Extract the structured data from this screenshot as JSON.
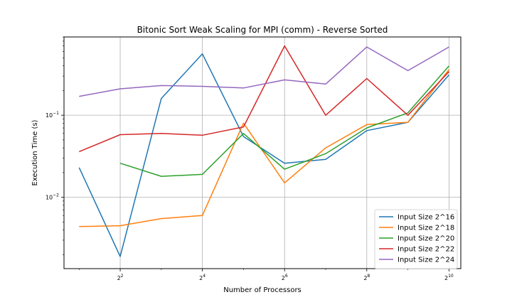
{
  "chart_data": {
    "type": "line",
    "title": "Bitonic Sort Weak Scaling for MPI (comm) - Reverse Sorted",
    "xlabel": "Number of Processors",
    "ylabel": "Execution Time (s)",
    "x_scale": "log2",
    "y_scale": "log10",
    "x": [
      2,
      4,
      8,
      16,
      32,
      64,
      128,
      256,
      512,
      1024
    ],
    "xlim": [
      1.55,
      1250
    ],
    "ylim": [
      0.00135,
      0.9
    ],
    "grid": true,
    "legend_position": "lower-right",
    "x_ticks": [
      {
        "value": 4,
        "base": "2",
        "exp": "2"
      },
      {
        "value": 16,
        "base": "2",
        "exp": "4"
      },
      {
        "value": 64,
        "base": "2",
        "exp": "6"
      },
      {
        "value": 256,
        "base": "2",
        "exp": "8"
      },
      {
        "value": 1024,
        "base": "2",
        "exp": "10"
      }
    ],
    "y_ticks": [
      {
        "value": 0.01,
        "base": "10",
        "exp": "−2"
      },
      {
        "value": 0.1,
        "base": "10",
        "exp": "−1"
      }
    ],
    "series": [
      {
        "name": "Input Size 2^16",
        "color": "#1f77b4",
        "values": [
          0.023,
          0.0019,
          0.16,
          0.56,
          0.055,
          0.026,
          0.029,
          0.065,
          0.082,
          0.31
        ]
      },
      {
        "name": "Input Size 2^18",
        "color": "#ff7f0e",
        "values": [
          0.0044,
          0.0045,
          0.0055,
          0.006,
          0.08,
          0.015,
          0.04,
          0.077,
          0.082,
          0.36
        ]
      },
      {
        "name": "Input Size 2^20",
        "color": "#2ca02c",
        "values": [
          null,
          0.026,
          0.018,
          0.019,
          0.06,
          0.022,
          0.034,
          0.07,
          0.107,
          0.4
        ]
      },
      {
        "name": "Input Size 2^22",
        "color": "#d62728",
        "values": [
          0.036,
          0.058,
          0.06,
          0.057,
          0.072,
          0.7,
          0.1,
          0.28,
          0.1,
          0.34
        ]
      },
      {
        "name": "Input Size 2^24",
        "color": "#9467bd",
        "values": [
          0.17,
          0.21,
          0.23,
          0.225,
          0.215,
          0.27,
          0.24,
          0.68,
          0.35,
          0.68
        ]
      }
    ]
  }
}
